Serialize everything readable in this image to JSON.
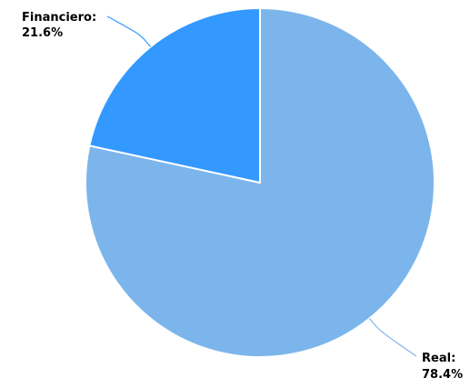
{
  "chart_data": {
    "type": "pie",
    "title": "",
    "slices": [
      {
        "label": "Real",
        "value": 78.4,
        "display": "78.4%",
        "color": "#7cb5ec"
      },
      {
        "label": "Financiero",
        "value": 21.6,
        "display": "21.6%",
        "color": "#3399ff"
      }
    ],
    "legend": "none",
    "data_labels": "outside-with-connectors"
  }
}
